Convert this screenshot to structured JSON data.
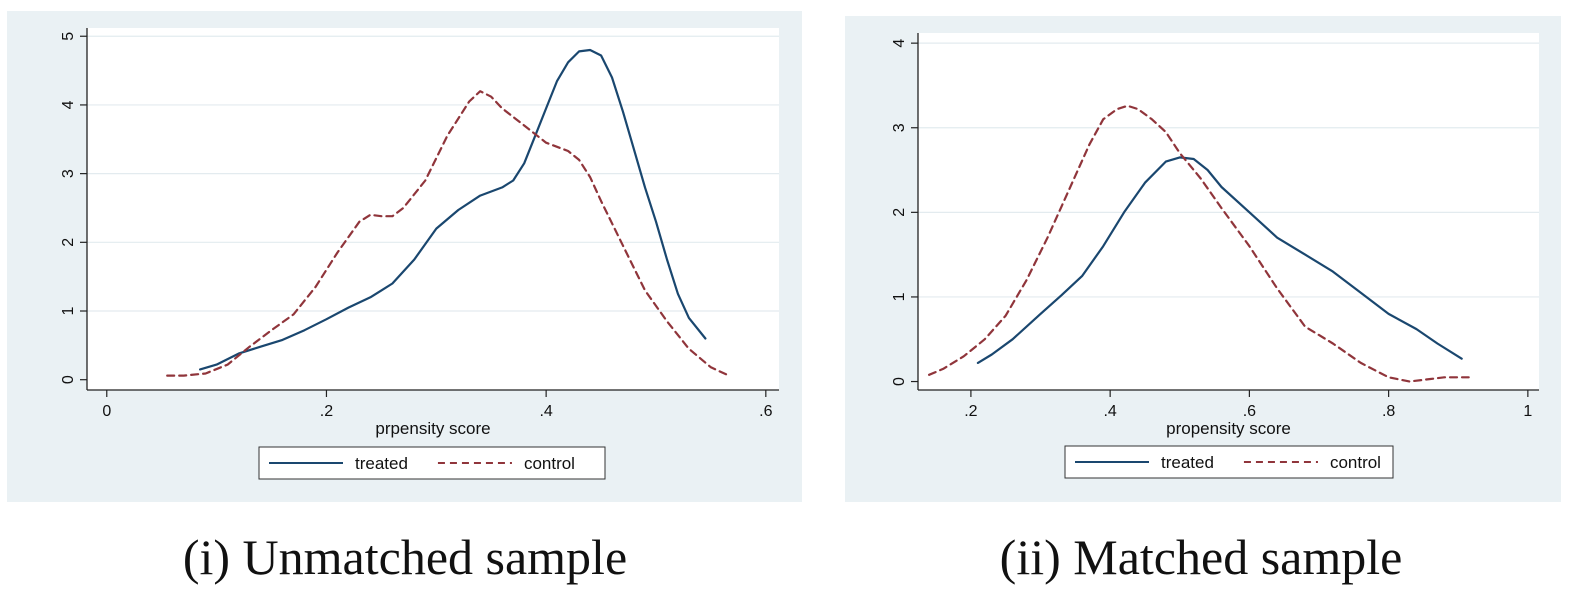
{
  "colors": {
    "panel_bg": "#eaf1f4",
    "plot_bg": "#ffffff",
    "grid": "#e3ebef",
    "treated": "#1a476f",
    "control": "#90353b"
  },
  "captions": {
    "left": "(i) Unmatched sample",
    "right": "(ii) Matched sample"
  },
  "chart_data": [
    {
      "type": "line",
      "title": "",
      "xlabel": "prpensity score",
      "ylabel": "",
      "xlim": [
        -0.018,
        0.612
      ],
      "ylim": [
        -0.15,
        5.12
      ],
      "xticks": [
        0,
        0.2,
        0.4,
        0.6
      ],
      "xtick_labels": [
        "0",
        ".2",
        ".4",
        ".6"
      ],
      "yticks": [
        0,
        1,
        2,
        3,
        4,
        5
      ],
      "ytick_labels": [
        "0",
        "1",
        "2",
        "3",
        "4",
        "5"
      ],
      "grid": true,
      "legend_position": "bottom",
      "series": [
        {
          "name": "treated",
          "style": "solid",
          "color": "#1a476f",
          "points": [
            [
              0.085,
              0.15
            ],
            [
              0.1,
              0.22
            ],
            [
              0.12,
              0.38
            ],
            [
              0.14,
              0.48
            ],
            [
              0.16,
              0.58
            ],
            [
              0.18,
              0.72
            ],
            [
              0.2,
              0.88
            ],
            [
              0.22,
              1.05
            ],
            [
              0.24,
              1.2
            ],
            [
              0.26,
              1.4
            ],
            [
              0.28,
              1.75
            ],
            [
              0.3,
              2.2
            ],
            [
              0.32,
              2.47
            ],
            [
              0.34,
              2.68
            ],
            [
              0.36,
              2.8
            ],
            [
              0.37,
              2.9
            ],
            [
              0.38,
              3.15
            ],
            [
              0.39,
              3.55
            ],
            [
              0.4,
              3.95
            ],
            [
              0.41,
              4.35
            ],
            [
              0.42,
              4.62
            ],
            [
              0.43,
              4.78
            ],
            [
              0.44,
              4.8
            ],
            [
              0.45,
              4.72
            ],
            [
              0.46,
              4.4
            ],
            [
              0.47,
              3.9
            ],
            [
              0.48,
              3.35
            ],
            [
              0.49,
              2.8
            ],
            [
              0.5,
              2.3
            ],
            [
              0.51,
              1.75
            ],
            [
              0.52,
              1.25
            ],
            [
              0.53,
              0.9
            ],
            [
              0.545,
              0.6
            ]
          ]
        },
        {
          "name": "control",
          "style": "dashed",
          "color": "#90353b",
          "points": [
            [
              0.055,
              0.06
            ],
            [
              0.07,
              0.06
            ],
            [
              0.09,
              0.09
            ],
            [
              0.11,
              0.22
            ],
            [
              0.13,
              0.48
            ],
            [
              0.15,
              0.72
            ],
            [
              0.17,
              0.95
            ],
            [
              0.19,
              1.35
            ],
            [
              0.21,
              1.85
            ],
            [
              0.23,
              2.3
            ],
            [
              0.24,
              2.4
            ],
            [
              0.25,
              2.38
            ],
            [
              0.26,
              2.38
            ],
            [
              0.27,
              2.5
            ],
            [
              0.29,
              2.9
            ],
            [
              0.31,
              3.55
            ],
            [
              0.33,
              4.05
            ],
            [
              0.34,
              4.2
            ],
            [
              0.35,
              4.12
            ],
            [
              0.36,
              3.95
            ],
            [
              0.38,
              3.7
            ],
            [
              0.4,
              3.45
            ],
            [
              0.42,
              3.33
            ],
            [
              0.43,
              3.2
            ],
            [
              0.44,
              2.95
            ],
            [
              0.45,
              2.6
            ],
            [
              0.47,
              1.95
            ],
            [
              0.49,
              1.3
            ],
            [
              0.51,
              0.85
            ],
            [
              0.53,
              0.45
            ],
            [
              0.55,
              0.18
            ],
            [
              0.565,
              0.07
            ]
          ]
        }
      ]
    },
    {
      "type": "line",
      "title": "",
      "xlabel": "propensity score",
      "ylabel": "",
      "xlim": [
        0.124,
        1.016
      ],
      "ylim": [
        -0.1,
        4.12
      ],
      "xticks": [
        0.2,
        0.4,
        0.6,
        0.8,
        1.0
      ],
      "xtick_labels": [
        ".2",
        ".4",
        ".6",
        ".8",
        "1"
      ],
      "yticks": [
        0,
        1,
        2,
        3,
        4
      ],
      "ytick_labels": [
        "0",
        "1",
        "2",
        "3",
        "4"
      ],
      "grid": true,
      "legend_position": "bottom",
      "series": [
        {
          "name": "treated",
          "style": "solid",
          "color": "#1a476f",
          "points": [
            [
              0.21,
              0.22
            ],
            [
              0.23,
              0.32
            ],
            [
              0.26,
              0.5
            ],
            [
              0.3,
              0.8
            ],
            [
              0.33,
              1.02
            ],
            [
              0.36,
              1.25
            ],
            [
              0.39,
              1.6
            ],
            [
              0.42,
              2.0
            ],
            [
              0.45,
              2.35
            ],
            [
              0.48,
              2.6
            ],
            [
              0.5,
              2.65
            ],
            [
              0.52,
              2.63
            ],
            [
              0.54,
              2.5
            ],
            [
              0.56,
              2.3
            ],
            [
              0.6,
              2.0
            ],
            [
              0.64,
              1.7
            ],
            [
              0.68,
              1.5
            ],
            [
              0.72,
              1.3
            ],
            [
              0.76,
              1.05
            ],
            [
              0.8,
              0.8
            ],
            [
              0.84,
              0.62
            ],
            [
              0.87,
              0.45
            ],
            [
              0.905,
              0.27
            ]
          ]
        },
        {
          "name": "control",
          "style": "dashed",
          "color": "#90353b",
          "points": [
            [
              0.14,
              0.08
            ],
            [
              0.16,
              0.15
            ],
            [
              0.19,
              0.3
            ],
            [
              0.22,
              0.5
            ],
            [
              0.25,
              0.78
            ],
            [
              0.28,
              1.2
            ],
            [
              0.31,
              1.7
            ],
            [
              0.34,
              2.25
            ],
            [
              0.37,
              2.8
            ],
            [
              0.39,
              3.1
            ],
            [
              0.41,
              3.22
            ],
            [
              0.425,
              3.26
            ],
            [
              0.44,
              3.22
            ],
            [
              0.46,
              3.1
            ],
            [
              0.48,
              2.95
            ],
            [
              0.5,
              2.7
            ],
            [
              0.53,
              2.4
            ],
            [
              0.56,
              2.05
            ],
            [
              0.6,
              1.6
            ],
            [
              0.64,
              1.1
            ],
            [
              0.68,
              0.65
            ],
            [
              0.72,
              0.45
            ],
            [
              0.76,
              0.22
            ],
            [
              0.8,
              0.05
            ],
            [
              0.83,
              0.0
            ],
            [
              0.86,
              0.03
            ],
            [
              0.88,
              0.05
            ],
            [
              0.915,
              0.05
            ]
          ]
        }
      ]
    }
  ]
}
